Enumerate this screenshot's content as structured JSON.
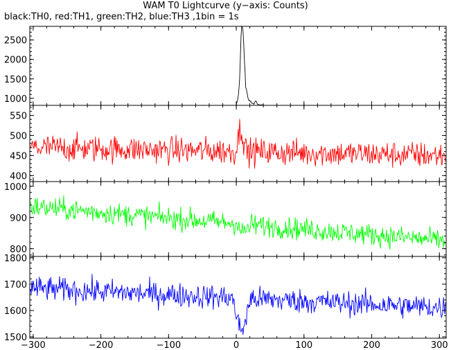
{
  "chart_data": {
    "type": "line",
    "title": "WAM T0 Lightcurve (y−axis: Counts)",
    "subtitle": "black:TH0, red:TH1, green:TH2, blue:TH3 ,1bin = 1s",
    "x_range": [
      -305,
      310
    ],
    "x_ticks": [
      -300,
      -200,
      -100,
      0,
      100,
      200,
      300
    ],
    "x_tick_labels": [
      "−300",
      "−200",
      "−100",
      "0",
      "100",
      "200",
      "300"
    ],
    "panels": [
      {
        "series": "TH0",
        "color": "#000000",
        "ylim": [
          820,
          2850
        ],
        "y_ticks": [
          1000,
          1500,
          2000,
          2500
        ],
        "baseline": 800,
        "noise": 14,
        "features": [
          {
            "x": 0,
            "value": 800
          },
          {
            "x": 3,
            "value": 1050
          },
          {
            "x": 5,
            "value": 1500
          },
          {
            "x": 7,
            "value": 2600
          },
          {
            "x": 8,
            "value": 2850
          },
          {
            "x": 10,
            "value": 2700
          },
          {
            "x": 12,
            "value": 2000
          },
          {
            "x": 14,
            "value": 1300
          },
          {
            "x": 18,
            "value": 950
          },
          {
            "x": 25,
            "value": 850
          },
          {
            "x": 29,
            "value": 930
          },
          {
            "x": 32,
            "value": 850
          },
          {
            "x": 40,
            "value": 805
          }
        ]
      },
      {
        "series": "TH1",
        "color": "#ff0000",
        "ylim": [
          385,
          575
        ],
        "y_ticks": [
          400,
          450,
          500,
          550
        ],
        "baseline": 470,
        "noise": 24,
        "trend_end": 450,
        "features": [
          {
            "x": 0,
            "value": 470
          },
          {
            "x": 6,
            "value": 520
          },
          {
            "x": 9,
            "value": 505
          },
          {
            "x": 14,
            "value": 470
          }
        ]
      },
      {
        "series": "TH2",
        "color": "#00ff00",
        "ylim": [
          775,
          1015
        ],
        "y_ticks": [
          800,
          900,
          1000
        ],
        "baseline": 935,
        "noise": 25,
        "trend_end": 825,
        "features": [
          {
            "x": 0,
            "value": 890
          },
          {
            "x": 8,
            "value": 850
          },
          {
            "x": 20,
            "value": 870
          }
        ]
      },
      {
        "series": "TH3",
        "color": "#0000ff",
        "ylim": [
          1495,
          1805
        ],
        "y_ticks": [
          1500,
          1600,
          1700,
          1800
        ],
        "baseline": 1685,
        "noise": 33,
        "trend_end": 1610,
        "features": [
          {
            "x": -5,
            "value": 1640
          },
          {
            "x": 5,
            "value": 1530
          },
          {
            "x": 10,
            "value": 1530
          },
          {
            "x": 20,
            "value": 1630
          }
        ]
      }
    ]
  }
}
